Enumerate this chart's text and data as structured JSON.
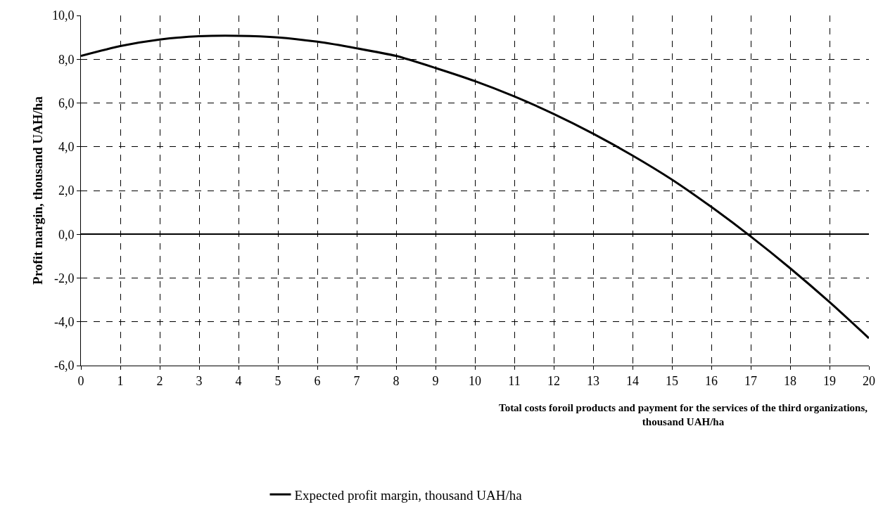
{
  "chart_data": {
    "type": "line",
    "xlabel": "Total costs foroil products and payment for the services of the third organizations,\nthousand UAH/ha",
    "ylabel": "Profit margin, thousand UAH/ha",
    "x": [
      0,
      1,
      2,
      3,
      4,
      5,
      6,
      7,
      8,
      9,
      10,
      11,
      12,
      13,
      14,
      15,
      16,
      17,
      18,
      19,
      20
    ],
    "series": [
      {
        "name": "Expected profit margin, thousand UAH/ha",
        "color": "#000000",
        "values": [
          8.15,
          8.6,
          8.9,
          9.05,
          9.07,
          9.0,
          8.8,
          8.5,
          8.15,
          7.6,
          7.0,
          6.3,
          5.5,
          4.6,
          3.6,
          2.5,
          1.25,
          -0.1,
          -1.55,
          -3.1,
          -4.75
        ]
      }
    ],
    "xlim": [
      0,
      20
    ],
    "xticks": [
      0,
      1,
      2,
      3,
      4,
      5,
      6,
      7,
      8,
      9,
      10,
      11,
      12,
      13,
      14,
      15,
      16,
      17,
      18,
      19,
      20
    ],
    "ylim": [
      -6,
      10
    ],
    "yticks": [
      {
        "value": -6,
        "label": "-6,0"
      },
      {
        "value": -4,
        "label": "-4,0"
      },
      {
        "value": -2,
        "label": "-2,0"
      },
      {
        "value": 0,
        "label": "0,0"
      },
      {
        "value": 2,
        "label": "2,0"
      },
      {
        "value": 4,
        "label": "4,0"
      },
      {
        "value": 6,
        "label": "6,0"
      },
      {
        "value": 8,
        "label": "8,0"
      },
      {
        "value": 10,
        "label": "10,0"
      }
    ],
    "grid": true,
    "legend": "bottom",
    "line_style": "solid",
    "marker": "none"
  }
}
